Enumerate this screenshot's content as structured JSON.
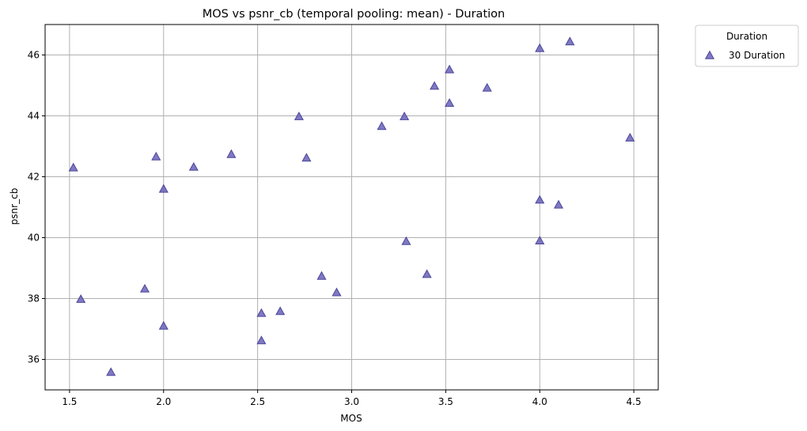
{
  "chart_data": {
    "type": "scatter",
    "title": "MOS vs psnr_cb (temporal pooling: mean) - Duration",
    "xlabel": "MOS",
    "ylabel": "psnr_cb",
    "xlim": [
      1.37,
      4.63
    ],
    "ylim": [
      35.0,
      47.0
    ],
    "xticks": [
      1.5,
      2.0,
      2.5,
      3.0,
      3.5,
      4.0,
      4.5
    ],
    "xtick_labels": [
      "1.5",
      "2.0",
      "2.5",
      "3.0",
      "3.5",
      "4.0",
      "4.5"
    ],
    "yticks": [
      36,
      38,
      40,
      42,
      44,
      46
    ],
    "ytick_labels": [
      "36",
      "38",
      "40",
      "42",
      "44",
      "46"
    ],
    "grid": true,
    "marker": "triangle",
    "legend": {
      "title": "Duration",
      "placement": "outside-top-right",
      "entries": [
        "30 Duration"
      ]
    },
    "series": [
      {
        "name": "30 Duration",
        "color": "#6a62b8",
        "edge_color": "#4b4699",
        "points": [
          [
            1.52,
            42.3
          ],
          [
            1.56,
            37.98
          ],
          [
            1.72,
            35.58
          ],
          [
            1.9,
            38.32
          ],
          [
            1.96,
            42.66
          ],
          [
            2.0,
            41.6
          ],
          [
            2.0,
            37.1
          ],
          [
            2.16,
            42.32
          ],
          [
            2.36,
            42.74
          ],
          [
            2.52,
            37.52
          ],
          [
            2.52,
            36.62
          ],
          [
            2.62,
            37.58
          ],
          [
            2.72,
            43.98
          ],
          [
            2.76,
            42.62
          ],
          [
            2.84,
            38.74
          ],
          [
            2.92,
            38.2
          ],
          [
            3.16,
            43.66
          ],
          [
            3.28,
            43.98
          ],
          [
            3.29,
            39.88
          ],
          [
            3.4,
            38.8
          ],
          [
            3.44,
            44.98
          ],
          [
            3.52,
            45.52
          ],
          [
            3.52,
            44.42
          ],
          [
            3.72,
            44.92
          ],
          [
            4.0,
            46.22
          ],
          [
            4.0,
            41.24
          ],
          [
            4.0,
            39.9
          ],
          [
            4.1,
            41.08
          ],
          [
            4.16,
            46.44
          ],
          [
            4.48,
            43.28
          ]
        ]
      }
    ]
  }
}
